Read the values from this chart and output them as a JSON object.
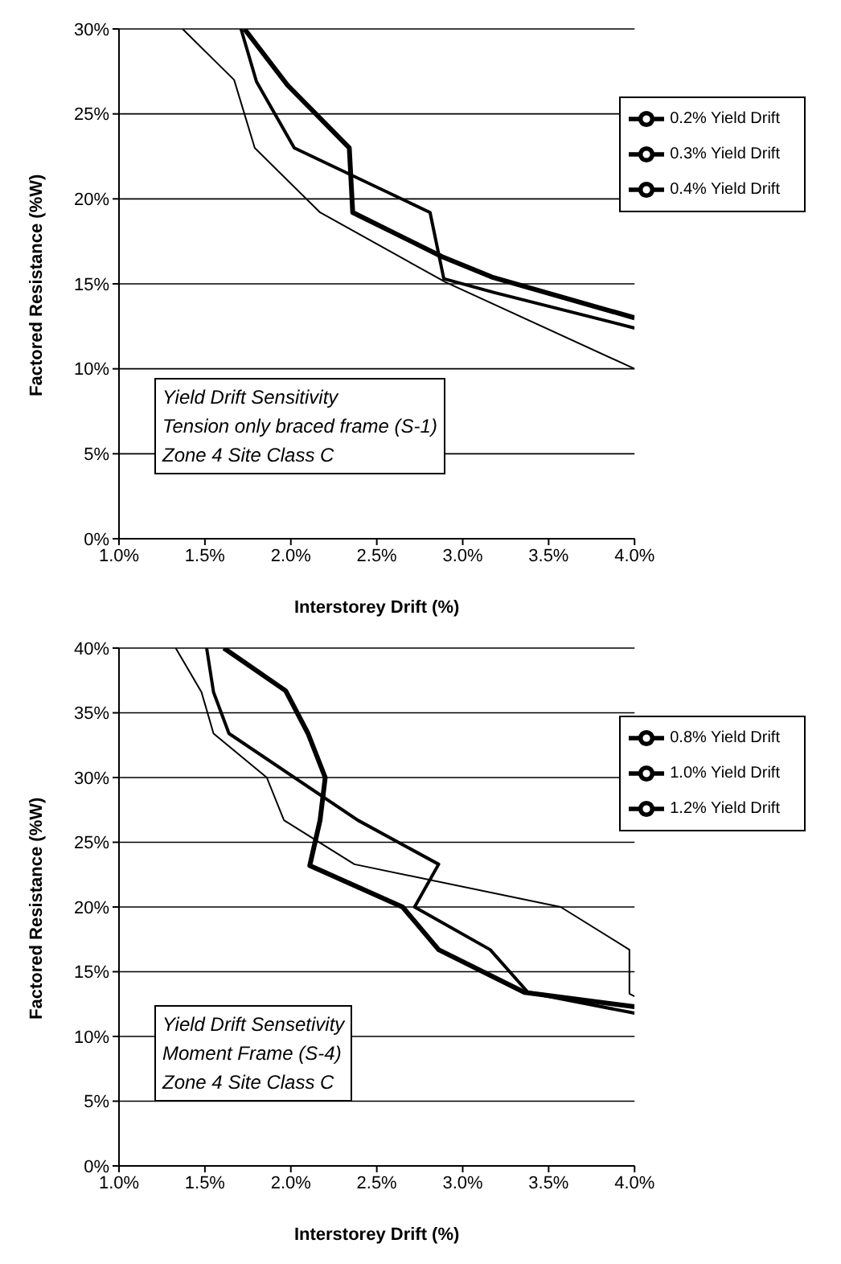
{
  "chart_data": [
    {
      "type": "line",
      "xlabel": "Interstorey Drift (%)",
      "ylabel": "Factored Resistance (%W)",
      "xlim": [
        1,
        4
      ],
      "ylim": [
        0,
        30
      ],
      "xticks": [
        {
          "value": 1,
          "label": "1.0%"
        },
        {
          "value": 1.5,
          "label": "1.5%"
        },
        {
          "value": 2,
          "label": "2.0%"
        },
        {
          "value": 2.5,
          "label": "2.5%"
        },
        {
          "value": 3,
          "label": "3.0%"
        },
        {
          "value": 3.5,
          "label": "3.5%"
        },
        {
          "value": 4,
          "label": "4.0%"
        }
      ],
      "yticks": [
        {
          "value": 0,
          "label": "0%"
        },
        {
          "value": 5,
          "label": "5%"
        },
        {
          "value": 10,
          "label": "10%"
        },
        {
          "value": 15,
          "label": "15%"
        },
        {
          "value": 20,
          "label": "20%"
        },
        {
          "value": 25,
          "label": "25%"
        },
        {
          "value": 30,
          "label": "30%"
        }
      ],
      "grid": "y",
      "legend": "top right",
      "marker": "none",
      "line_style": "solid",
      "annotations": [
        "Yield Drift Sensitivity",
        "Tension only braced frame (S-1)",
        "Zone 4 Site Class C"
      ],
      "series": [
        {
          "name": "0.2% Yield Drift",
          "color": "#000000",
          "x": [
            1.37,
            1.67,
            1.79,
            2.17,
            2.9,
            4.0
          ],
          "values": [
            30,
            27,
            23,
            19.2,
            15.1,
            10
          ]
        },
        {
          "name": "0.3% Yield Drift",
          "color": "#000000",
          "x": [
            1.71,
            1.8,
            2.02,
            2.81,
            2.89,
            3.18,
            4.0
          ],
          "values": [
            30,
            26.9,
            23,
            19.2,
            15.3,
            14.5,
            12.4
          ]
        },
        {
          "name": "0.4% Yield Drift",
          "color": "#000000",
          "x": [
            1.73,
            1.98,
            2.34,
            2.36,
            2.88,
            3.17,
            4.0
          ],
          "values": [
            30,
            26.7,
            23,
            19.2,
            16.6,
            15.4,
            13
          ]
        }
      ]
    },
    {
      "type": "line",
      "xlabel": "Interstorey Drift (%)",
      "ylabel": "Factored Resistance (%W)",
      "xlim": [
        1,
        4
      ],
      "ylim": [
        0,
        40
      ],
      "xticks": [
        {
          "value": 1,
          "label": "1.0%"
        },
        {
          "value": 1.5,
          "label": "1.5%"
        },
        {
          "value": 2,
          "label": "2.0%"
        },
        {
          "value": 2.5,
          "label": "2.5%"
        },
        {
          "value": 3,
          "label": "3.0%"
        },
        {
          "value": 3.5,
          "label": "3.5%"
        },
        {
          "value": 4,
          "label": "4.0%"
        }
      ],
      "yticks": [
        {
          "value": 0,
          "label": "0%"
        },
        {
          "value": 5,
          "label": "5%"
        },
        {
          "value": 10,
          "label": "10%"
        },
        {
          "value": 15,
          "label": "15%"
        },
        {
          "value": 20,
          "label": "20%"
        },
        {
          "value": 25,
          "label": "25%"
        },
        {
          "value": 30,
          "label": "30%"
        },
        {
          "value": 35,
          "label": "35%"
        },
        {
          "value": 40,
          "label": "40%"
        }
      ],
      "grid": "y",
      "legend": "top right",
      "marker": "none",
      "line_style": "solid",
      "annotations": [
        "Yield Drift Sensetivity",
        "Moment Frame (S-4)",
        "Zone 4 Site Class C"
      ],
      "series": [
        {
          "name": "0.8% Yield Drift",
          "color": "#000000",
          "x": [
            1.33,
            1.48,
            1.55,
            1.86,
            1.96,
            2.37,
            3.57,
            3.97,
            3.97,
            4.0
          ],
          "values": [
            40,
            36.6,
            33.4,
            30,
            26.7,
            23.3,
            20,
            16.7,
            13.3,
            13.1
          ]
        },
        {
          "name": "1.0% Yield Drift",
          "color": "#000000",
          "x": [
            1.51,
            1.55,
            1.64,
            2.39,
            2.86,
            2.72,
            3.16,
            3.38,
            4.0
          ],
          "values": [
            40,
            36.6,
            33.4,
            26.7,
            23.3,
            20,
            16.7,
            13.4,
            11.8
          ]
        },
        {
          "name": "1.2% Yield Drift",
          "color": "#000000",
          "x": [
            1.61,
            1.97,
            2.1,
            2.2,
            2.17,
            2.11,
            2.65,
            2.86,
            3.36,
            4.0
          ],
          "values": [
            40,
            36.7,
            33.4,
            30,
            26.7,
            23.2,
            20,
            16.7,
            13.4,
            12.3
          ]
        }
      ]
    }
  ]
}
